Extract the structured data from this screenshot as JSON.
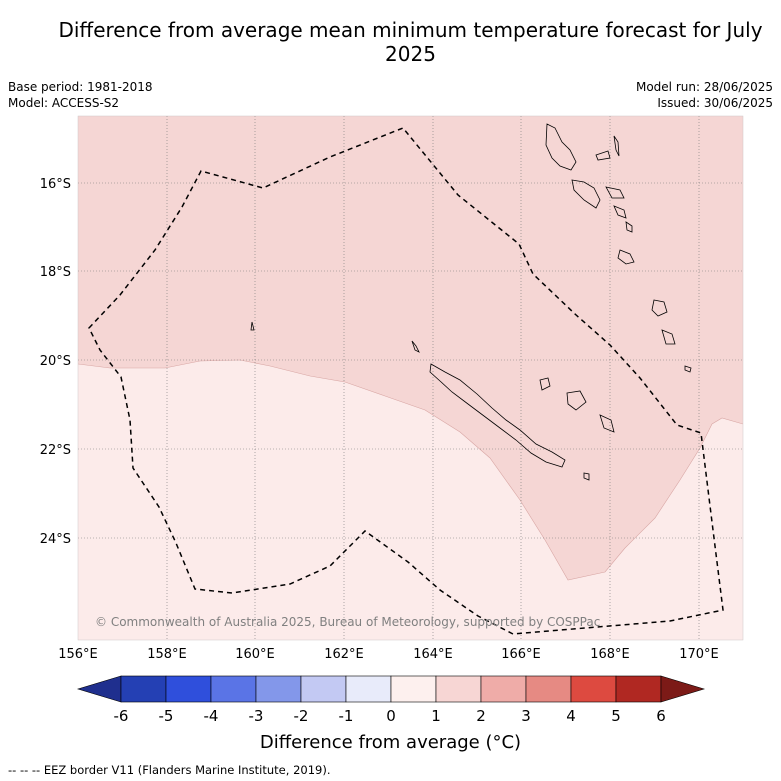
{
  "title": "Difference from average mean minimum temperature forecast for July 2025",
  "header_left": {
    "base_period": "Base period: 1981-2018",
    "model": "Model: ACCESS-S2"
  },
  "header_right": {
    "model_run": "Model run: 28/06/2025",
    "issued": "Issued: 30/06/2025"
  },
  "map": {
    "y_ticks": [
      "16°S",
      "18°S",
      "20°S",
      "22°S",
      "24°S"
    ],
    "x_ticks": [
      "156°E",
      "158°E",
      "160°E",
      "162°E",
      "164°E",
      "166°E",
      "168°E",
      "170°E"
    ],
    "copyright": "© Commonwealth of Australia 2025, Bureau of Meteorology, supported by COSPPac"
  },
  "colorbar": {
    "labels": [
      "-6",
      "-5",
      "-4",
      "-3",
      "-2",
      "-1",
      "0",
      "1",
      "2",
      "3",
      "4",
      "5",
      "6"
    ],
    "colors": [
      "#1f2f8e",
      "#2440b4",
      "#2f4fdc",
      "#5a74e6",
      "#8397ea",
      "#c3c9f3",
      "#e8ebfa",
      "#fdf0ee",
      "#f7d6d4",
      "#efaca8",
      "#e68a83",
      "#dd4a40",
      "#b02822",
      "#7c1a17"
    ],
    "title": "Difference from average (°C)"
  },
  "chart_data": {
    "type": "heatmap",
    "title": "Difference from average mean minimum temperature forecast for July 2025",
    "xlabel": "",
    "ylabel": "",
    "x_range_deg_east": [
      156.0,
      171.0
    ],
    "y_range_deg_south": [
      14.8,
      26.6
    ],
    "colorbar_range": [
      -6,
      6
    ],
    "colorbar_step": 1,
    "colorbar_unit": "°C",
    "legend_placement": "bottom",
    "grid": true,
    "dominant_categories": [
      "0 to 1",
      "1 to 2"
    ]
  },
  "footnote": "-- -- -- EEZ border V11 (Flanders Marine Institute, 2019)."
}
